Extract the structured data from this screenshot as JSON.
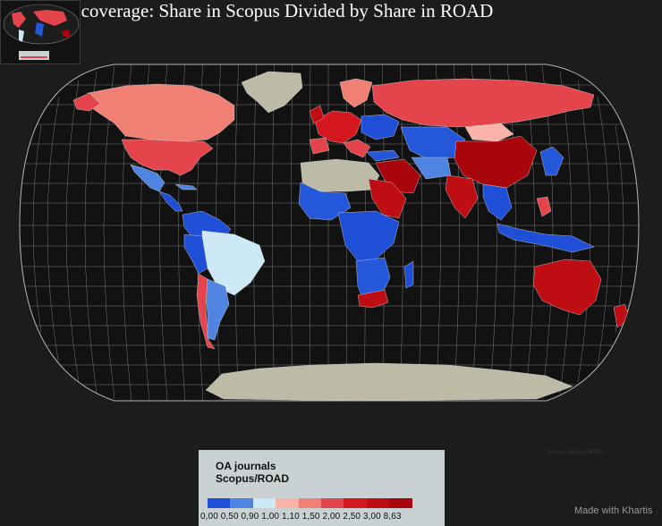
{
  "title": "als coverage: Share in Scopus Divided by Share in ROAD",
  "legend": {
    "title_line1": "OA journals",
    "title_line2": "Scopus/ROAD",
    "tick_labels": "0,00 0,50 0,90 1,00 1,10 1,50 2,00 2,50 3,00 8,63",
    "colors": [
      "#1f4fd6",
      "#4f84e0",
      "#cde9f6",
      "#f9b3a8",
      "#f08073",
      "#e4454c",
      "#d4161f",
      "#bf0d14",
      "#a8060c"
    ]
  },
  "credit": "Made with Khartis",
  "faint_text": "Source: Scopus, ROAD",
  "colors": {
    "background": "#1b1c1b",
    "ocean": "#121212",
    "graticule": "#9a9a9a",
    "no_data": "#bcbba6"
  }
}
